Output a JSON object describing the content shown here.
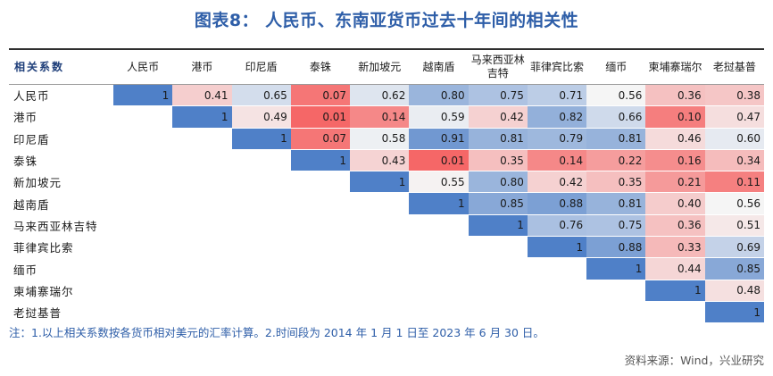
{
  "title": "图表8： 人民币、东南亚货币过去十年间的相关性",
  "note": "注：1.以上相关系数按各货币相对美元的汇率计算。2.时间段为 2014 年 1 月 1 日至 2023 年 6 月 30 日。",
  "source": "资料来源：Wind，兴业研究",
  "colors": {
    "title": "#2e5ea8",
    "high": "#4f80c8",
    "mid": "#f5f5f5",
    "low": "#f56464"
  },
  "chart_data": {
    "type": "heatmap",
    "corner_label": "相关系数",
    "columns": [
      "人民币",
      "港币",
      "印尼盾",
      "泰铢",
      "新加坡元",
      "越南盾",
      "马来西亚林吉特",
      "菲律宾比索",
      "缅币",
      "柬埔寨瑞尔",
      "老挝基普"
    ],
    "rows": [
      "人民币",
      "港币",
      "印尼盾",
      "泰铢",
      "新加坡元",
      "越南盾",
      "马来西亚林吉特",
      "菲律宾比索",
      "缅币",
      "柬埔寨瑞尔",
      "老挝基普"
    ],
    "values": [
      [
        1,
        0.41,
        0.65,
        0.07,
        0.62,
        0.8,
        0.75,
        0.71,
        0.56,
        0.36,
        0.38
      ],
      [
        null,
        1,
        0.49,
        0.01,
        0.14,
        0.59,
        0.42,
        0.82,
        0.66,
        0.1,
        0.47
      ],
      [
        null,
        null,
        1,
        0.07,
        0.58,
        0.91,
        0.81,
        0.79,
        0.81,
        0.46,
        0.6
      ],
      [
        null,
        null,
        null,
        1,
        0.43,
        0.01,
        0.35,
        0.14,
        0.22,
        0.16,
        0.34
      ],
      [
        null,
        null,
        null,
        null,
        1,
        0.55,
        0.8,
        0.42,
        0.35,
        0.21,
        0.11
      ],
      [
        null,
        null,
        null,
        null,
        null,
        1,
        0.85,
        0.88,
        0.81,
        0.4,
        0.56
      ],
      [
        null,
        null,
        null,
        null,
        null,
        null,
        1,
        0.76,
        0.75,
        0.36,
        0.51
      ],
      [
        null,
        null,
        null,
        null,
        null,
        null,
        null,
        1,
        0.88,
        0.33,
        0.69
      ],
      [
        null,
        null,
        null,
        null,
        null,
        null,
        null,
        null,
        1,
        0.44,
        0.85
      ],
      [
        null,
        null,
        null,
        null,
        null,
        null,
        null,
        null,
        null,
        1,
        0.48
      ],
      [
        null,
        null,
        null,
        null,
        null,
        null,
        null,
        null,
        null,
        null,
        1
      ]
    ],
    "value_range": [
      0,
      1
    ]
  }
}
